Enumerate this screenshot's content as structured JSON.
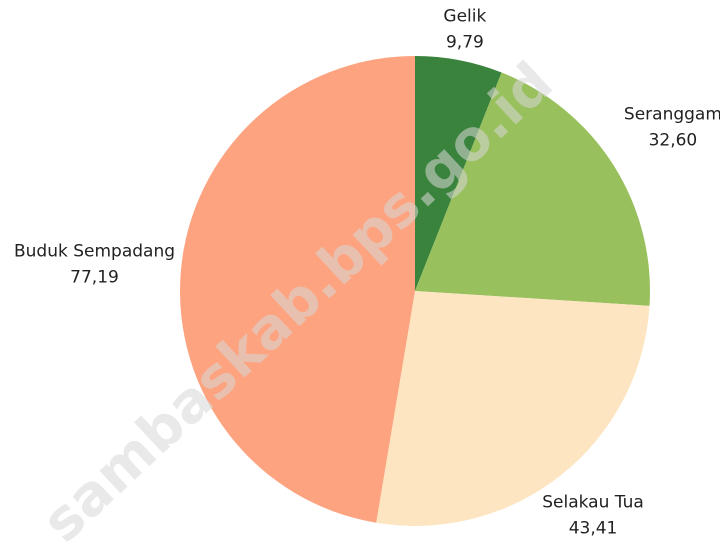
{
  "chart_data": {
    "type": "pie",
    "categories": [
      "Gelik",
      "Seranggam",
      "Selakau Tua",
      "Buduk Sempadang"
    ],
    "values": [
      9.79,
      32.6,
      43.41,
      77.19
    ],
    "value_labels": [
      "9,79",
      "32,60",
      "43,41",
      "77,19"
    ],
    "colors": [
      "#3a833c",
      "#98c05c",
      "#fde5c2",
      "#fda380"
    ]
  },
  "watermark": "sambaskab.bps.go.id"
}
